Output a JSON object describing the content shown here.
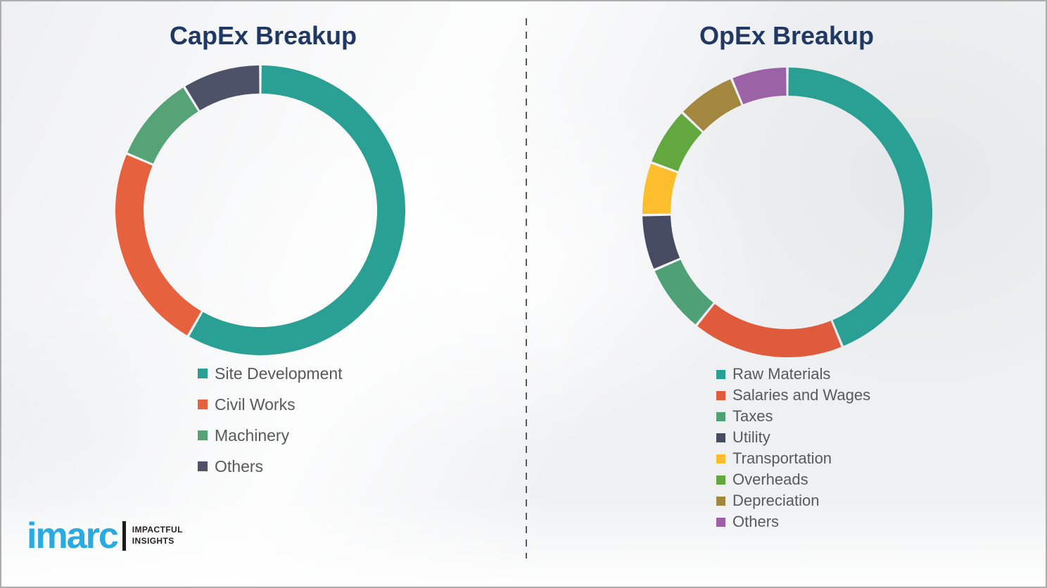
{
  "palette": {
    "background": "#EFF0F2",
    "border": "#ADADAD",
    "title_text": "#1F3864",
    "legend_text": "#595959",
    "divider": "#595959",
    "logo_blue": "#29ABE2",
    "logo_black": "#231F20"
  },
  "chart_data": [
    {
      "type": "pie",
      "variant": "donut",
      "title": "CapEx Breakup",
      "legend_position": "below-left",
      "start_angle_deg": 0,
      "direction": "clockwise",
      "unit": "percent-of-ring (no numeric labels shown; estimated from arc angles)",
      "categories": [
        "Site Development",
        "Civil Works",
        "Machinery",
        "Others"
      ],
      "values": [
        58.3,
        23.1,
        9.8,
        8.8
      ],
      "colors": [
        "#2AA094",
        "#E6623F",
        "#55A377",
        "#4E5268"
      ]
    },
    {
      "type": "pie",
      "variant": "donut",
      "title": "OpEx Breakup",
      "legend_position": "below-left",
      "start_angle_deg": 0,
      "direction": "clockwise",
      "unit": "percent-of-ring (no numeric labels shown; estimated from arc angles)",
      "categories": [
        "Raw Materials",
        "Salaries and Wages",
        "Taxes",
        "Utility",
        "Transportation",
        "Overheads",
        "Depreciation",
        "Others"
      ],
      "values": [
        43.8,
        17.0,
        7.7,
        6.2,
        5.9,
        6.5,
        6.6,
        6.3
      ],
      "colors": [
        "#2AA094",
        "#E05A3C",
        "#4FA077",
        "#474C63",
        "#FCBE2C",
        "#63A73F",
        "#A3873E",
        "#9B63A5"
      ]
    }
  ],
  "logo": {
    "brand": "imarc",
    "tagline_line1": "IMPACTFUL",
    "tagline_line2": "INSIGHTS"
  }
}
